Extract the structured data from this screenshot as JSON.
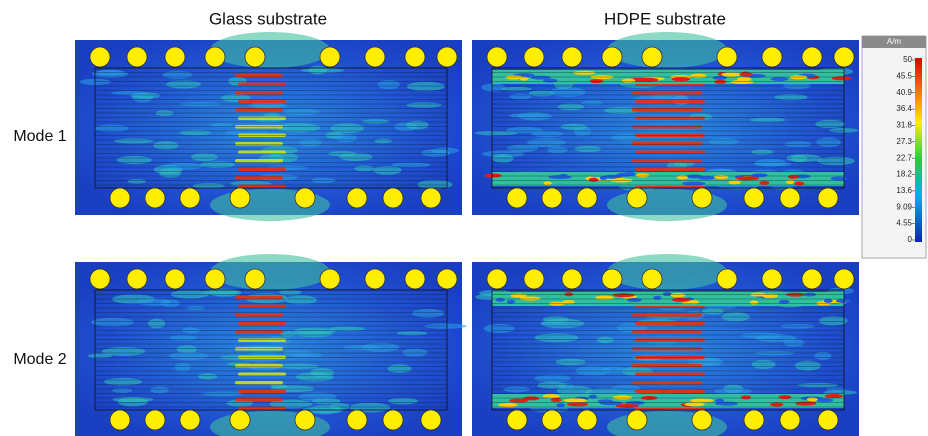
{
  "columns": [
    "Glass substrate",
    "HDPE substrate"
  ],
  "rows": [
    "Mode 1",
    "Mode 2"
  ],
  "colorbar": {
    "unit": "A/m",
    "ticks": [
      "50",
      "45.5",
      "40.9",
      "36.4",
      "31.8",
      "27.3",
      "22.7",
      "18.2",
      "13.6",
      "9.09",
      "4.55",
      "0"
    ]
  }
}
